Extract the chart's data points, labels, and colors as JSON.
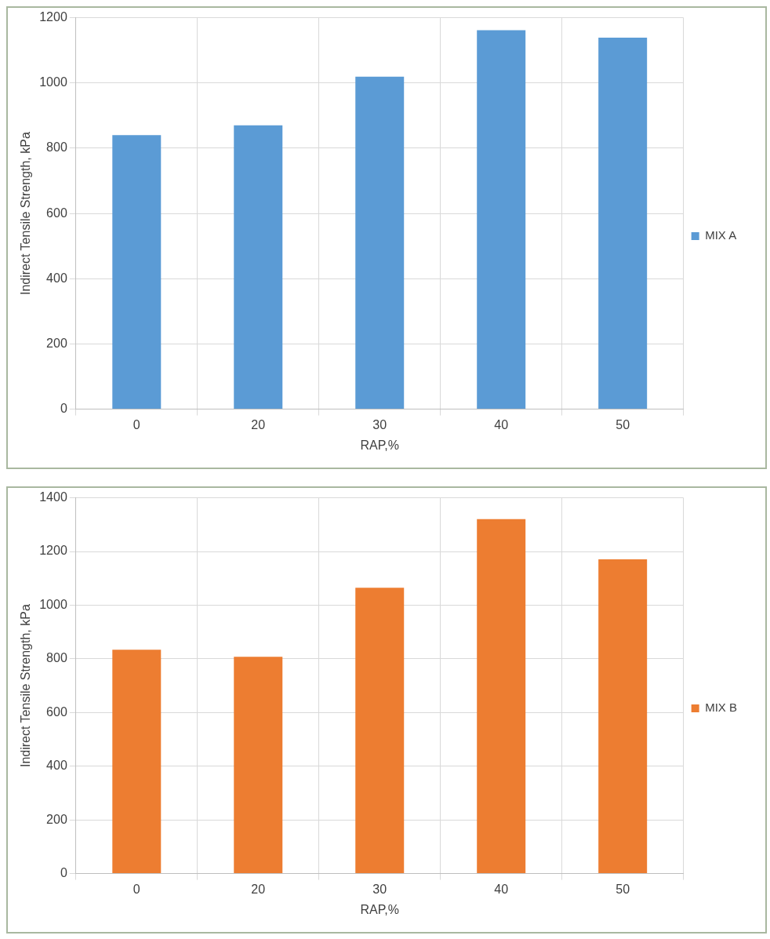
{
  "chart_data": [
    {
      "type": "bar",
      "xlabel": "RAP,%",
      "ylabel": "Indirect Tensile Strength, kPa",
      "categories": [
        "0",
        "20",
        "30",
        "40",
        "50"
      ],
      "series": [
        {
          "name": "MIX A",
          "color": "#5b9bd5",
          "values": [
            840,
            870,
            1019,
            1162,
            1139
          ]
        }
      ],
      "ylim": [
        0,
        1200
      ],
      "yticks": [
        0,
        200,
        400,
        600,
        800,
        1000,
        1200
      ],
      "grid": true,
      "legend": "right"
    },
    {
      "type": "bar",
      "xlabel": "RAP,%",
      "ylabel": "Indirect Tensile Strength, kPa",
      "categories": [
        "0",
        "20",
        "30",
        "40",
        "50"
      ],
      "series": [
        {
          "name": "MIX B",
          "color": "#ed7d31",
          "values": [
            834,
            808,
            1065,
            1321,
            1171
          ]
        }
      ],
      "ylim": [
        0,
        1400
      ],
      "yticks": [
        0,
        200,
        400,
        600,
        800,
        1000,
        1200,
        1400
      ],
      "grid": true,
      "legend": "right"
    }
  ]
}
